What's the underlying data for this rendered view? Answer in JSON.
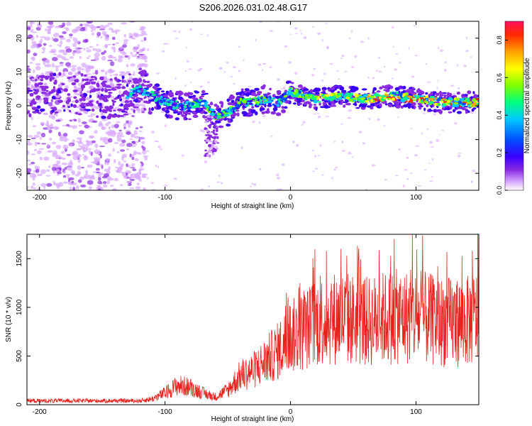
{
  "title": "S206.2026.031.02.48.G17",
  "chart_data": [
    {
      "type": "heatmap",
      "xlabel": "Height of straight line (km)",
      "ylabel": "Frequency (Hz)",
      "xlim": [
        -210,
        150
      ],
      "ylim": [
        -25,
        25
      ],
      "xticks": [
        -200,
        -100,
        0,
        100
      ],
      "yticks": [
        -20,
        -10,
        0,
        10,
        20
      ],
      "colorbar": {
        "label": "Normalized spectral amplitude",
        "range": [
          0.0,
          0.9
        ],
        "ticks": [
          0.0,
          0.2,
          0.4,
          0.6,
          0.8
        ],
        "colors": [
          "#ffffff",
          "#d8a8ff",
          "#8a2be2",
          "#3a00ff",
          "#0050ff",
          "#00c8ff",
          "#00ff80",
          "#7fff00",
          "#ffff00",
          "#ffa000",
          "#ff2a00",
          "#ff1060"
        ]
      },
      "ridge": [
        {
          "x": -200,
          "f": 3
        },
        {
          "x": -180,
          "f": 4
        },
        {
          "x": -160,
          "f": 3
        },
        {
          "x": -140,
          "f": 2
        },
        {
          "x": -120,
          "f": 5
        },
        {
          "x": -110,
          "f": 3
        },
        {
          "x": -100,
          "f": 1
        },
        {
          "x": -90,
          "f": 0
        },
        {
          "x": -80,
          "f": 0
        },
        {
          "x": -70,
          "f": 1
        },
        {
          "x": -60,
          "f": -3
        },
        {
          "x": -50,
          "f": -2
        },
        {
          "x": -40,
          "f": 1
        },
        {
          "x": -30,
          "f": 1
        },
        {
          "x": -20,
          "f": 2
        },
        {
          "x": -10,
          "f": 1
        },
        {
          "x": 0,
          "f": 4
        },
        {
          "x": 20,
          "f": 2
        },
        {
          "x": 40,
          "f": 3
        },
        {
          "x": 60,
          "f": 2
        },
        {
          "x": 80,
          "f": 3
        },
        {
          "x": 100,
          "f": 2
        },
        {
          "x": 120,
          "f": 1
        },
        {
          "x": 140,
          "f": 1
        },
        {
          "x": 150,
          "f": 1
        }
      ]
    },
    {
      "type": "line",
      "xlabel": "Height of straight line (km)",
      "ylabel": "SNR (10 * v/v)",
      "xlim": [
        -210,
        150
      ],
      "ylim": [
        0,
        1750
      ],
      "xticks": [
        -200,
        -100,
        0,
        100
      ],
      "yticks": [
        0,
        500,
        1000,
        1500
      ],
      "color": "#e8221c",
      "envelope_x": [
        -210,
        -120,
        -110,
        -100,
        -90,
        -80,
        -70,
        -60,
        -50,
        -40,
        -30,
        -20,
        -10,
        0,
        10,
        20,
        40,
        60,
        80,
        100,
        120,
        140,
        150
      ],
      "envelope_y": [
        40,
        40,
        60,
        120,
        200,
        180,
        120,
        80,
        150,
        300,
        350,
        450,
        550,
        700,
        750,
        850,
        900,
        850,
        900,
        900,
        850,
        850,
        900
      ]
    }
  ]
}
